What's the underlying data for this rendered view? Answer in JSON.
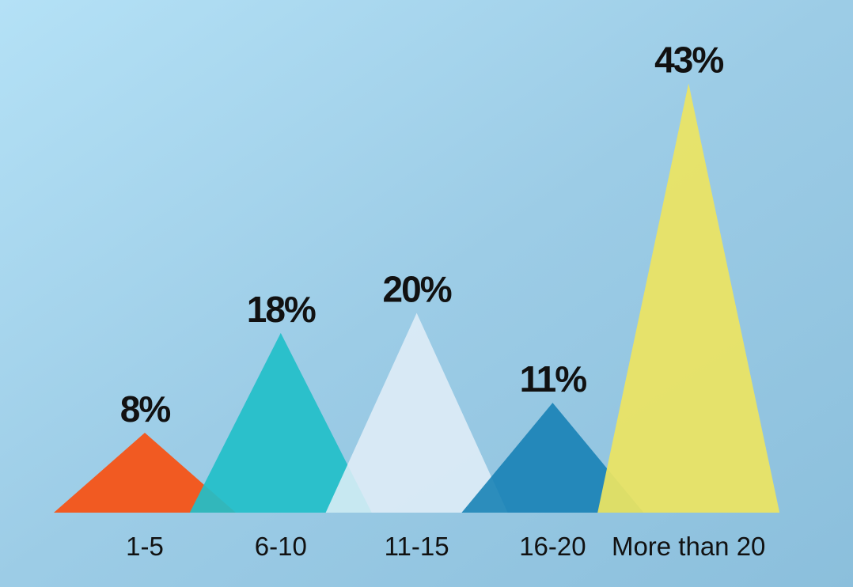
{
  "chart_data": {
    "type": "triangle",
    "categories": [
      "1-5",
      "6-10",
      "11-15",
      "16-20",
      "More than 20"
    ],
    "values": [
      8,
      18,
      20,
      11,
      43
    ],
    "value_labels": [
      "8%",
      "18%",
      "20%",
      "11%",
      "43%"
    ],
    "colors": [
      "#f15a22",
      "#22bfc9",
      "#e3eff8",
      "#1580b4",
      "#ece462"
    ]
  }
}
